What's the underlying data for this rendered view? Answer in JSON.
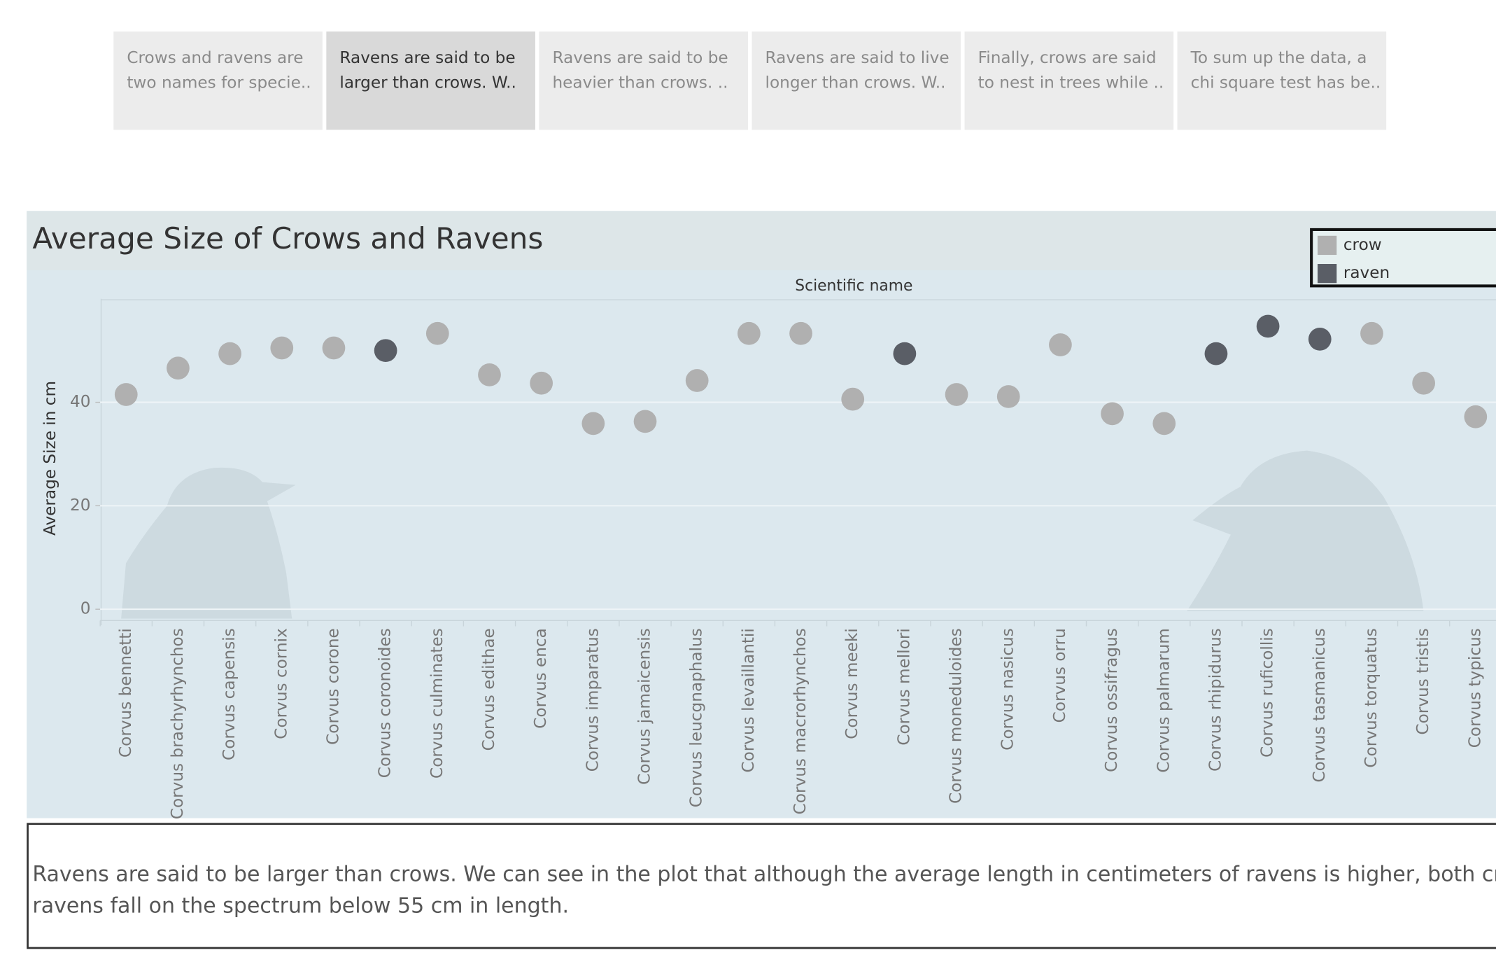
{
  "story_tabs": [
    {
      "lines": [
        "Crows and ravens are",
        "two names for specie.."
      ],
      "active": false
    },
    {
      "lines": [
        "Ravens are said to be",
        "larger than crows. W.."
      ],
      "active": true
    },
    {
      "lines": [
        "Ravens are said to be",
        "heavier than crows. .."
      ],
      "active": false
    },
    {
      "lines": [
        "Ravens are said to live",
        "longer than crows. W.."
      ],
      "active": false
    },
    {
      "lines": [
        "Finally, crows are said",
        "to nest in trees while .."
      ],
      "active": false
    },
    {
      "lines": [
        "To sum up the data, a",
        "chi square test has be.."
      ],
      "active": false
    }
  ],
  "chart_data": {
    "type": "scatter",
    "title": "Average Size of Crows and Ravens",
    "column_header": "Scientific name",
    "y_label": "Average Size in cm",
    "categories": [
      "Corvus bennetti",
      "Corvus brachyrhynchos",
      "Corvus capensis",
      "Corvus cornix",
      "Corvus corone",
      "Corvus coronoides",
      "Corvus culminates",
      "Corvus edithae",
      "Corvus enca",
      "Corvus imparatus",
      "Corvus jamaicensis",
      "Corvus leucgnaphalus",
      "Corvus levaillantii",
      "Corvus macrorhynchos",
      "Corvus meeki",
      "Corvus mellori",
      "Corvus moneduloides",
      "Corvus nasicus",
      "Corvus orru",
      "Corvus ossifragus",
      "Corvus palmarum",
      "Corvus rhipidurus",
      "Corvus ruficollis",
      "Corvus tasmanicus",
      "Corvus torquatus",
      "Corvus tristis",
      "Corvus typicus"
    ],
    "series": [
      {
        "name": "crow",
        "color": "#b0b0b0",
        "values": [
          41.5,
          46.6,
          49.4,
          50.5,
          50.5,
          null,
          53.3,
          45.3,
          43.7,
          35.9,
          36.3,
          44.2,
          53.3,
          53.3,
          40.6,
          null,
          41.5,
          41.1,
          51.1,
          37.8,
          35.9,
          null,
          null,
          null,
          53.3,
          43.7,
          37.2
        ]
      },
      {
        "name": "raven",
        "color": "#5a5e66",
        "values": [
          null,
          null,
          null,
          null,
          null,
          50,
          null,
          null,
          null,
          null,
          null,
          null,
          null,
          null,
          null,
          49.4,
          null,
          null,
          null,
          null,
          null,
          49.4,
          54.7,
          52.2,
          null,
          null,
          null
        ]
      }
    ],
    "ylim": [
      -2,
      60
    ],
    "yticks": [
      0,
      20,
      40
    ],
    "grid": true
  },
  "caption": {
    "lines": [
      "Ravens are said to be larger than crows. We can see in the plot that although the average length in centimeters of ravens is higher, both cro",
      "ravens fall on the spectrum below 55 cm in length."
    ]
  }
}
